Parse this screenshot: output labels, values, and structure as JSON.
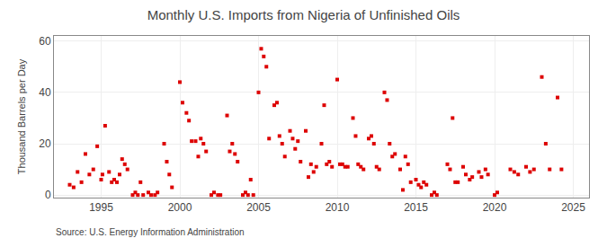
{
  "chart_data": {
    "type": "scatter",
    "title": "Monthly U.S. Imports from Nigeria of Unfinished Oils",
    "ylabel": "Thousand Barrels per Day",
    "annotations": [
      "Source: U.S. Energy Information Administration"
    ],
    "color": "#dd0000",
    "marker": "square",
    "grid": true,
    "xlim": [
      1992.0,
      2026.0
    ],
    "ylim": [
      -1,
      62
    ],
    "xticks": [
      1995,
      2000,
      2005,
      2010,
      2015,
      2020,
      2025
    ],
    "yticks": [
      0,
      20,
      40,
      60
    ],
    "x": [
      1993.0,
      1993.25,
      1993.5,
      1993.75,
      1994.0,
      1994.25,
      1994.5,
      1994.75,
      1995.0,
      1995.08,
      1995.25,
      1995.5,
      1995.67,
      1995.83,
      1996.0,
      1996.17,
      1996.33,
      1996.5,
      1996.67,
      1997.0,
      1997.17,
      1997.33,
      1997.5,
      1997.67,
      1998.0,
      1998.17,
      1998.42,
      1998.58,
      1999.0,
      1999.17,
      1999.33,
      1999.5,
      2000.0,
      2000.17,
      2000.42,
      2000.58,
      2000.75,
      2001.0,
      2001.17,
      2001.33,
      2001.5,
      2001.67,
      2002.0,
      2002.17,
      2002.42,
      2002.58,
      2003.0,
      2003.17,
      2003.33,
      2003.5,
      2003.67,
      2004.0,
      2004.17,
      2004.33,
      2004.5,
      2004.67,
      2005.0,
      2005.17,
      2005.33,
      2005.5,
      2005.67,
      2006.0,
      2006.17,
      2006.33,
      2006.5,
      2006.67,
      2007.0,
      2007.17,
      2007.33,
      2007.5,
      2007.67,
      2008.0,
      2008.17,
      2008.33,
      2008.5,
      2008.67,
      2009.0,
      2009.17,
      2009.33,
      2009.5,
      2009.67,
      2010.0,
      2010.17,
      2010.33,
      2010.5,
      2010.67,
      2011.0,
      2011.17,
      2011.33,
      2011.5,
      2011.67,
      2012.0,
      2012.17,
      2012.33,
      2012.5,
      2012.67,
      2013.0,
      2013.17,
      2013.33,
      2013.5,
      2013.67,
      2014.0,
      2014.17,
      2014.33,
      2014.5,
      2014.67,
      2015.0,
      2015.17,
      2015.33,
      2015.5,
      2015.67,
      2016.0,
      2016.17,
      2016.33,
      2017.0,
      2017.17,
      2017.33,
      2017.5,
      2017.67,
      2018.0,
      2018.17,
      2018.42,
      2018.58,
      2019.0,
      2019.17,
      2019.42,
      2019.58,
      2020.0,
      2020.17,
      2021.0,
      2021.25,
      2021.5,
      2022.0,
      2022.25,
      2022.5,
      2023.0,
      2023.25,
      2023.5,
      2024.0,
      2024.25
    ],
    "values": [
      4,
      3,
      9,
      5,
      16,
      8,
      10,
      19,
      6,
      8,
      27,
      9,
      5,
      6,
      5,
      8,
      14,
      12,
      10,
      0,
      1,
      0,
      5,
      0,
      1,
      0,
      0,
      1,
      20,
      13,
      8,
      3,
      44,
      36,
      32,
      29,
      21,
      21,
      15,
      22,
      20,
      17,
      0,
      1,
      0,
      0,
      31,
      17,
      20,
      16,
      13,
      0,
      1,
      0,
      6,
      0,
      40,
      57,
      54,
      50,
      22,
      35,
      36,
      23,
      20,
      15,
      25,
      22,
      18,
      21,
      13,
      25,
      7,
      12,
      9,
      11,
      20,
      35,
      12,
      13,
      11,
      45,
      12,
      12,
      11,
      11,
      30,
      23,
      12,
      11,
      10,
      22,
      23,
      20,
      11,
      10,
      40,
      37,
      20,
      15,
      16,
      10,
      2,
      15,
      12,
      5,
      6,
      4,
      3,
      5,
      4,
      0,
      1,
      0,
      12,
      10,
      30,
      5,
      5,
      11,
      8,
      6,
      7,
      9,
      7,
      10,
      8,
      0,
      1,
      10,
      9,
      8,
      11,
      9,
      10,
      46,
      20,
      10,
      38,
      10
    ]
  }
}
